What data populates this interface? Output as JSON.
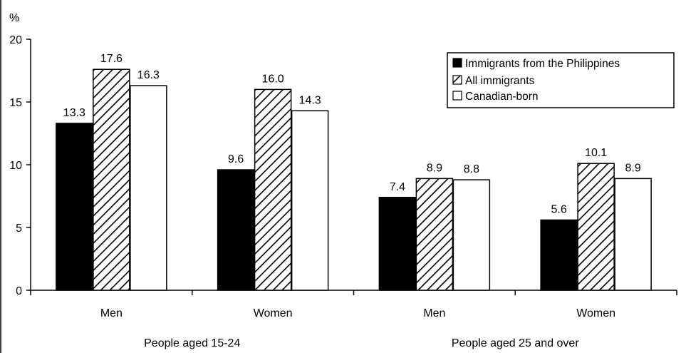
{
  "chart_data": {
    "type": "bar",
    "unit_label": "%",
    "ylim": [
      0,
      20
    ],
    "y_ticks": [
      0,
      5,
      10,
      15,
      20
    ],
    "categories": [
      "Men",
      "Women",
      "Men",
      "Women"
    ],
    "groups": [
      "People aged 15-24",
      "People aged 25 and over"
    ],
    "series": [
      {
        "name": "Immigrants from the Philippines",
        "values": [
          13.3,
          9.6,
          7.4,
          5.6
        ],
        "value_labels": [
          "13.3",
          "9.6",
          "7.4",
          "5.6"
        ]
      },
      {
        "name": "All immigrants",
        "values": [
          17.6,
          16.0,
          8.9,
          10.1
        ],
        "value_labels": [
          "17.6",
          "16.0",
          "8.9",
          "10.1"
        ]
      },
      {
        "name": "Canadian-born",
        "values": [
          16.3,
          14.3,
          8.8,
          8.9
        ],
        "value_labels": [
          "16.3",
          "14.3",
          "8.8",
          "8.9"
        ]
      }
    ],
    "series_fills": [
      "solid-black",
      "diagonal-hatch",
      "white"
    ],
    "grid": false,
    "legend_position": "top-right"
  }
}
